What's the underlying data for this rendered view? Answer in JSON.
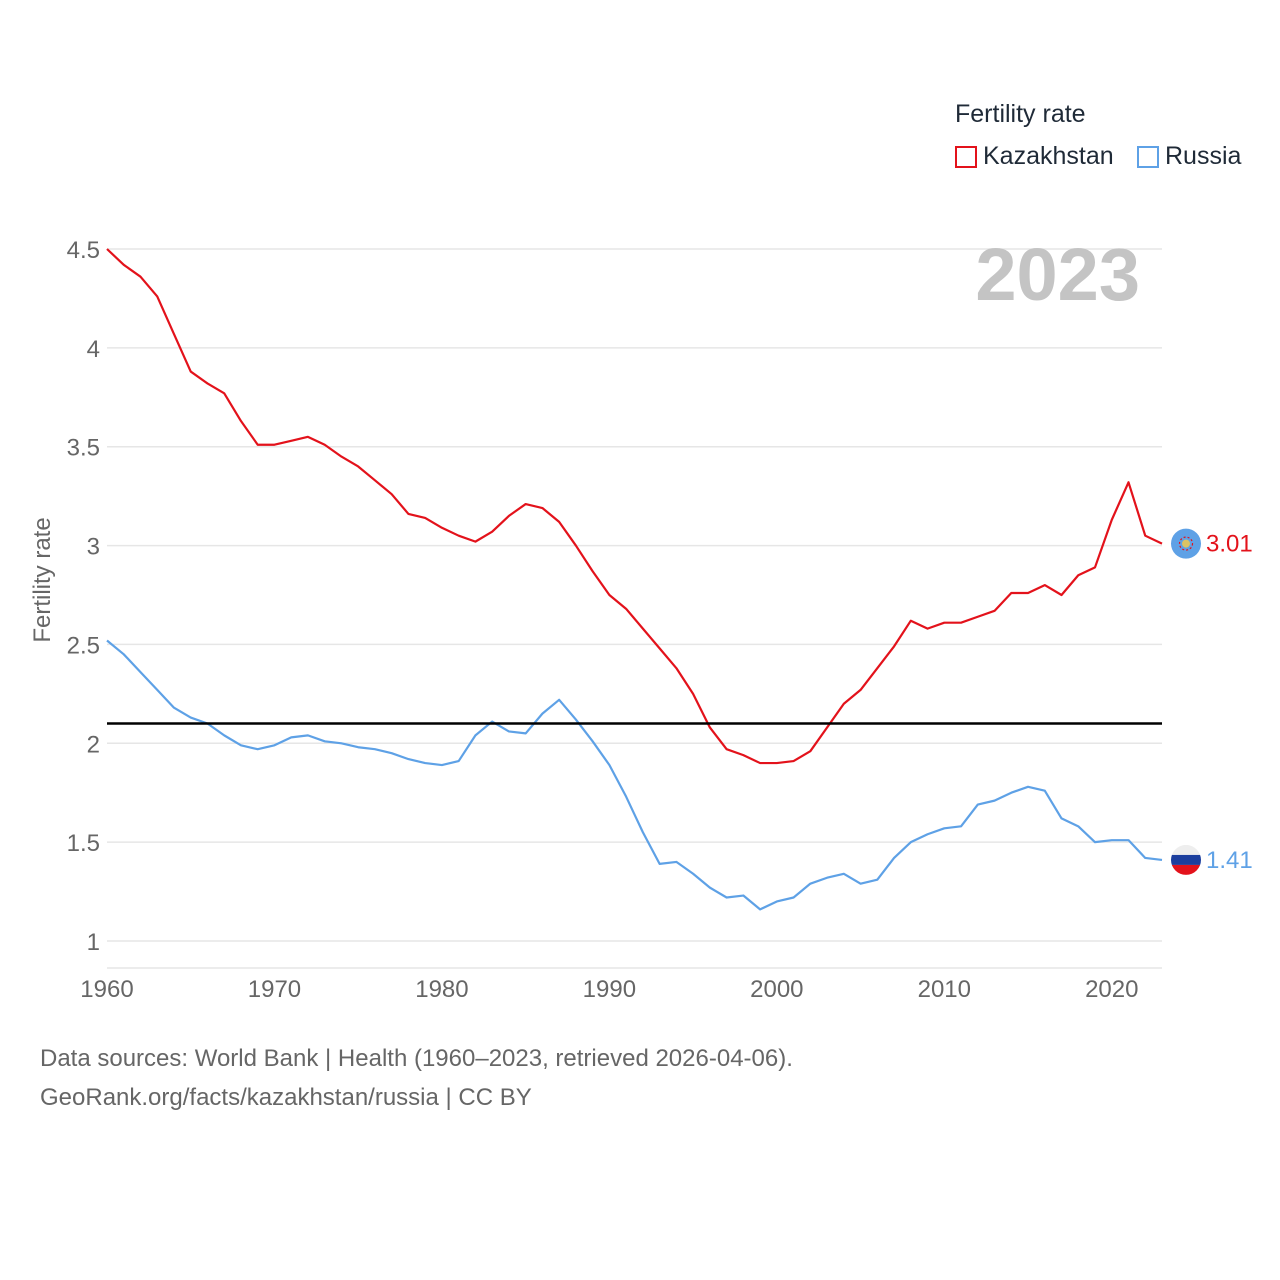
{
  "legend": {
    "title": "Fertility rate",
    "items": [
      {
        "label": "Kazakhstan",
        "color": "#e3121b"
      },
      {
        "label": "Russia",
        "color": "#5ea1e6"
      }
    ]
  },
  "year_label": "2023",
  "footer": {
    "line1": "Data sources: World Bank | Health (1960–2023, retrieved 2026-04-06).",
    "line2": "GeoRank.org/facts/kazakhstan/russia | CC BY"
  },
  "chart_data": {
    "type": "line",
    "ylabel": "Fertility rate",
    "xlabel": "",
    "xlim": [
      1960,
      2023
    ],
    "ylim": [
      1,
      4.5
    ],
    "x_ticks": [
      1960,
      1970,
      1980,
      1990,
      2000,
      2010,
      2020
    ],
    "y_ticks": [
      1,
      1.5,
      2,
      2.5,
      3,
      3.5,
      4,
      4.5
    ],
    "y_tick_labels": [
      "1",
      "1.5",
      "2",
      "2.5",
      "3",
      "3.5",
      "4",
      "4.5"
    ],
    "reference_line": {
      "y": 2.1
    },
    "x": [
      1960,
      1961,
      1962,
      1963,
      1964,
      1965,
      1966,
      1967,
      1968,
      1969,
      1970,
      1971,
      1972,
      1973,
      1974,
      1975,
      1976,
      1977,
      1978,
      1979,
      1980,
      1981,
      1982,
      1983,
      1984,
      1985,
      1986,
      1987,
      1988,
      1989,
      1990,
      1991,
      1992,
      1993,
      1994,
      1995,
      1996,
      1997,
      1998,
      1999,
      2000,
      2001,
      2002,
      2003,
      2004,
      2005,
      2006,
      2007,
      2008,
      2009,
      2010,
      2011,
      2012,
      2013,
      2014,
      2015,
      2016,
      2017,
      2018,
      2019,
      2020,
      2021,
      2022,
      2023
    ],
    "series": [
      {
        "name": "Kazakhstan",
        "color": "#e3121b",
        "end_label": "3.01",
        "values": [
          4.5,
          4.42,
          4.36,
          4.26,
          4.07,
          3.88,
          3.82,
          3.77,
          3.63,
          3.51,
          3.51,
          3.53,
          3.55,
          3.51,
          3.45,
          3.4,
          3.33,
          3.26,
          3.16,
          3.14,
          3.09,
          3.05,
          3.02,
          3.07,
          3.15,
          3.21,
          3.19,
          3.12,
          3.0,
          2.87,
          2.75,
          2.68,
          2.58,
          2.48,
          2.38,
          2.25,
          2.08,
          1.97,
          1.94,
          1.9,
          1.9,
          1.91,
          1.96,
          2.08,
          2.2,
          2.27,
          2.38,
          2.49,
          2.62,
          2.58,
          2.61,
          2.61,
          2.64,
          2.67,
          2.76,
          2.76,
          2.8,
          2.75,
          2.85,
          2.89,
          3.13,
          3.32,
          3.05,
          3.01
        ]
      },
      {
        "name": "Russia",
        "color": "#5ea1e6",
        "end_label": "1.41",
        "values": [
          2.52,
          2.45,
          2.36,
          2.27,
          2.18,
          2.13,
          2.1,
          2.04,
          1.99,
          1.97,
          1.99,
          2.03,
          2.04,
          2.01,
          2.0,
          1.98,
          1.97,
          1.95,
          1.92,
          1.9,
          1.89,
          1.91,
          2.04,
          2.11,
          2.06,
          2.05,
          2.15,
          2.22,
          2.12,
          2.01,
          1.89,
          1.73,
          1.55,
          1.39,
          1.4,
          1.34,
          1.27,
          1.22,
          1.23,
          1.16,
          1.2,
          1.22,
          1.29,
          1.32,
          1.34,
          1.29,
          1.31,
          1.42,
          1.5,
          1.54,
          1.57,
          1.58,
          1.69,
          1.71,
          1.75,
          1.78,
          1.76,
          1.62,
          1.58,
          1.5,
          1.51,
          1.51,
          1.42,
          1.41
        ]
      }
    ]
  }
}
